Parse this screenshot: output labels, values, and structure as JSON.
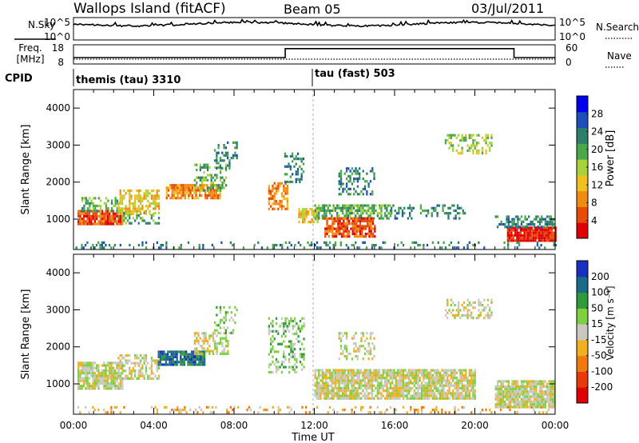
{
  "header": {
    "station": "Wallops Island (fitACF)",
    "beam": "Beam 05",
    "date": "03/Jul/2011"
  },
  "strip_labels": {
    "nsky": "N.Sky",
    "freq_line1": "Freq.",
    "freq_line2": "[MHz]",
    "cpid": "CPID",
    "nsearch": "N.Search",
    "nave": "Nave"
  },
  "cpid_segments": [
    {
      "label": "themis (tau) 3310",
      "start_hour": 0
    },
    {
      "label": "tau (fast) 503",
      "start_hour": 12
    }
  ],
  "chart_data": [
    {
      "type": "line",
      "name": "nsky-nsearch",
      "left_ticks": [
        "10^5",
        "10^0"
      ],
      "right_ticks": [
        "10^5",
        "10^0"
      ],
      "x_range_hours": [
        0,
        24
      ]
    },
    {
      "type": "line",
      "name": "freq-nave",
      "left_ticks": [
        "18",
        "8"
      ],
      "right_ticks": [
        "60",
        "0"
      ],
      "freq_levels": [
        {
          "from": 0,
          "to": 24,
          "mhz": 10.5
        }
      ],
      "nave_levels": [
        {
          "from": 0,
          "to": 10.55,
          "value": 20
        },
        {
          "from": 10.55,
          "to": 21.95,
          "value": 48
        },
        {
          "from": 21.95,
          "to": 24,
          "value": 20
        }
      ]
    },
    {
      "type": "heatmap",
      "name": "power",
      "ylabel": "Slant Range [km]",
      "y_ticks": [
        "4000",
        "3000",
        "2000",
        "1000"
      ],
      "y_range_km": [
        180,
        4500
      ],
      "colorbar_label": "Power [dB]",
      "colorbar_ticks": [
        "28",
        "24",
        "20",
        "16",
        "12",
        "8",
        "4"
      ],
      "colors": [
        "#0000ee",
        "#1c4fbb",
        "#2d7f6a",
        "#4aa84a",
        "#a8d23a",
        "#f0c020",
        "#f08c10",
        "#e84a08",
        "#e00000"
      ],
      "regions": [
        {
          "x": [
            0.2,
            2.4
          ],
          "y": [
            850,
            1250
          ],
          "level": 7,
          "d": 0.9
        },
        {
          "x": [
            0.4,
            2.4
          ],
          "y": [
            1250,
            1600
          ],
          "level": 3,
          "d": 0.5
        },
        {
          "x": [
            2.2,
            4.3
          ],
          "y": [
            1150,
            1800
          ],
          "level": 5,
          "d": 0.55
        },
        {
          "x": [
            2.2,
            4.3
          ],
          "y": [
            900,
            1200
          ],
          "level": 3,
          "d": 0.3
        },
        {
          "x": [
            4.6,
            7.3
          ],
          "y": [
            1550,
            1950
          ],
          "level": 6,
          "d": 0.8
        },
        {
          "x": [
            6.0,
            7.6
          ],
          "y": [
            1800,
            2500
          ],
          "level": 3,
          "d": 0.45
        },
        {
          "x": [
            7.0,
            8.1
          ],
          "y": [
            2400,
            3100
          ],
          "level": 2,
          "d": 0.4
        },
        {
          "x": [
            9.7,
            10.7
          ],
          "y": [
            1300,
            2000
          ],
          "level": 6,
          "d": 0.6
        },
        {
          "x": [
            10.5,
            11.5
          ],
          "y": [
            2000,
            2800
          ],
          "level": 2,
          "d": 0.35
        },
        {
          "x": [
            11.2,
            12.2
          ],
          "y": [
            900,
            1300
          ],
          "level": 5,
          "d": 0.6
        },
        {
          "x": [
            12.0,
            15.8
          ],
          "y": [
            1050,
            1400
          ],
          "level": 3,
          "d": 0.7
        },
        {
          "x": [
            12.5,
            15.0
          ],
          "y": [
            550,
            1050
          ],
          "level": 7,
          "d": 0.8
        },
        {
          "x": [
            15.8,
            19.5
          ],
          "y": [
            1050,
            1400
          ],
          "level": 2,
          "d": 0.4
        },
        {
          "x": [
            13.2,
            15.0
          ],
          "y": [
            1700,
            2400
          ],
          "level": 2,
          "d": 0.3
        },
        {
          "x": [
            18.5,
            20.8
          ],
          "y": [
            2800,
            3300
          ],
          "level": 4,
          "d": 0.45
        },
        {
          "x": [
            21.6,
            24.0
          ],
          "y": [
            400,
            800
          ],
          "level": 8,
          "d": 0.95
        },
        {
          "x": [
            21.0,
            24.0
          ],
          "y": [
            800,
            1100
          ],
          "level": 2,
          "d": 0.5
        },
        {
          "x": [
            0.1,
            24.0
          ],
          "y": [
            200,
            400
          ],
          "level": 2,
          "d": 0.2
        }
      ]
    },
    {
      "type": "heatmap",
      "name": "velocity",
      "ylabel": "Slant Range [km]",
      "y_ticks": [
        "4000",
        "3000",
        "2000",
        "1000"
      ],
      "y_range_km": [
        180,
        4500
      ],
      "colorbar_label": "Velocity [m s⁻¹]",
      "colorbar_ticks": [
        "200",
        "100",
        "50",
        "15",
        "-15",
        "-50",
        "-100",
        "-200"
      ],
      "colors": [
        "#1830c0",
        "#1b6a8a",
        "#2e9a3a",
        "#7ed040",
        "#c8c8c0",
        "#f0b020",
        "#f07a10",
        "#e83a08",
        "#e00000"
      ],
      "regions": [
        {
          "x": [
            0.2,
            2.4
          ],
          "y": [
            850,
            1600
          ],
          "level": 4,
          "d": 0.8
        },
        {
          "x": [
            2.2,
            4.3
          ],
          "y": [
            1150,
            1800
          ],
          "level": 4,
          "d": 0.5
        },
        {
          "x": [
            4.2,
            6.5
          ],
          "y": [
            1500,
            1900
          ],
          "level": 1,
          "d": 0.85
        },
        {
          "x": [
            6.0,
            7.7
          ],
          "y": [
            1800,
            2400
          ],
          "level": 4,
          "d": 0.55
        },
        {
          "x": [
            7.0,
            8.1
          ],
          "y": [
            2400,
            3100
          ],
          "level": 3,
          "d": 0.35
        },
        {
          "x": [
            9.7,
            11.5
          ],
          "y": [
            1300,
            2800
          ],
          "level": 3,
          "d": 0.35
        },
        {
          "x": [
            12.0,
            20.0
          ],
          "y": [
            600,
            1400
          ],
          "level": 4,
          "d": 0.85
        },
        {
          "x": [
            13.2,
            15.0
          ],
          "y": [
            1700,
            2400
          ],
          "level": 4,
          "d": 0.3
        },
        {
          "x": [
            18.5,
            20.8
          ],
          "y": [
            2800,
            3300
          ],
          "level": 4,
          "d": 0.4
        },
        {
          "x": [
            21.0,
            24.0
          ],
          "y": [
            400,
            1100
          ],
          "level": 4,
          "d": 0.9
        },
        {
          "x": [
            0.1,
            24.0
          ],
          "y": [
            200,
            400
          ],
          "level": 5,
          "d": 0.2
        }
      ]
    }
  ],
  "x_axis": {
    "ticks": [
      "00:00",
      "04:00",
      "08:00",
      "12:00",
      "16:00",
      "20:00",
      "00:00"
    ],
    "label": "Time UT"
  }
}
